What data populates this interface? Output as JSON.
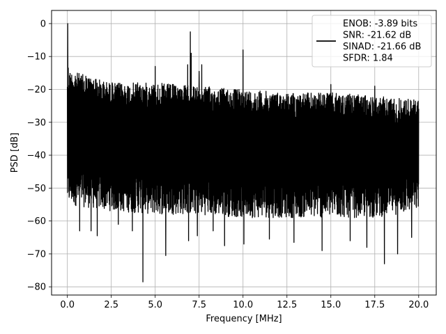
{
  "chart_data": {
    "type": "line",
    "title": "",
    "xlabel": "Frequency [MHz]",
    "ylabel": "PSD [dB]",
    "xlim": [
      -0.9,
      21.0
    ],
    "ylim": [
      -82.5,
      4.0
    ],
    "x_ticks": [
      0.0,
      2.5,
      5.0,
      7.5,
      10.0,
      12.5,
      15.0,
      17.5,
      20.0
    ],
    "x_tick_labels": [
      "0.0",
      "2.5",
      "5.0",
      "7.5",
      "10.0",
      "12.5",
      "15.0",
      "17.5",
      "20.0"
    ],
    "y_ticks": [
      0,
      -10,
      -20,
      -30,
      -40,
      -50,
      -60,
      -70,
      -80
    ],
    "y_tick_labels": [
      "0",
      "−10",
      "−20",
      "−30",
      "−40",
      "−50",
      "−60",
      "−70",
      "−80"
    ],
    "grid": true,
    "legend_position": "top-right",
    "series": [
      {
        "color": "#000000",
        "noise_floor": {
          "x": [
            0.0,
            2.5,
            5.0,
            7.5,
            10.0,
            12.5,
            15.0,
            17.5,
            20.0
          ],
          "upper": [
            -14,
            -18,
            -18,
            -19,
            -20,
            -21,
            -21,
            -22,
            -23
          ],
          "lower": [
            -55,
            -57,
            -58,
            -58,
            -59,
            -59,
            -59,
            -59,
            -57
          ]
        },
        "peaks": [
          {
            "x": 0.02,
            "y": 0.0
          },
          {
            "x": 0.05,
            "y": -13.5
          },
          {
            "x": 0.45,
            "y": -16.0
          },
          {
            "x": 1.05,
            "y": -16.0
          },
          {
            "x": 1.6,
            "y": -17.0
          },
          {
            "x": 2.55,
            "y": -18.0
          },
          {
            "x": 4.0,
            "y": -18.0
          },
          {
            "x": 5.0,
            "y": -13.0
          },
          {
            "x": 6.85,
            "y": -12.5
          },
          {
            "x": 7.0,
            "y": -2.5
          },
          {
            "x": 7.05,
            "y": -9.0
          },
          {
            "x": 7.5,
            "y": -14.5
          },
          {
            "x": 7.65,
            "y": -12.5
          },
          {
            "x": 10.0,
            "y": -8.0
          },
          {
            "x": 15.0,
            "y": -18.5
          },
          {
            "x": 17.5,
            "y": -19.0
          }
        ],
        "dips": [
          {
            "x": 0.7,
            "y": -63.0
          },
          {
            "x": 1.35,
            "y": -63.0
          },
          {
            "x": 1.7,
            "y": -64.5
          },
          {
            "x": 2.9,
            "y": -61.0
          },
          {
            "x": 3.7,
            "y": -63.0
          },
          {
            "x": 4.3,
            "y": -78.5
          },
          {
            "x": 5.6,
            "y": -70.5
          },
          {
            "x": 6.9,
            "y": -66.0
          },
          {
            "x": 7.4,
            "y": -64.5
          },
          {
            "x": 8.3,
            "y": -63.0
          },
          {
            "x": 8.95,
            "y": -67.5
          },
          {
            "x": 10.05,
            "y": -67.0
          },
          {
            "x": 11.5,
            "y": -65.5
          },
          {
            "x": 12.9,
            "y": -66.5
          },
          {
            "x": 14.5,
            "y": -69.0
          },
          {
            "x": 16.1,
            "y": -66.0
          },
          {
            "x": 17.05,
            "y": -68.0
          },
          {
            "x": 18.05,
            "y": -73.0
          },
          {
            "x": 18.8,
            "y": -70.0
          },
          {
            "x": 19.6,
            "y": -65.0
          }
        ]
      }
    ],
    "legend": {
      "lines": [
        "ENOB: -3.89 bits",
        "SNR: -21.62 dB",
        "SINAD: -21.66 dB",
        "SFDR: 1.84"
      ]
    }
  }
}
